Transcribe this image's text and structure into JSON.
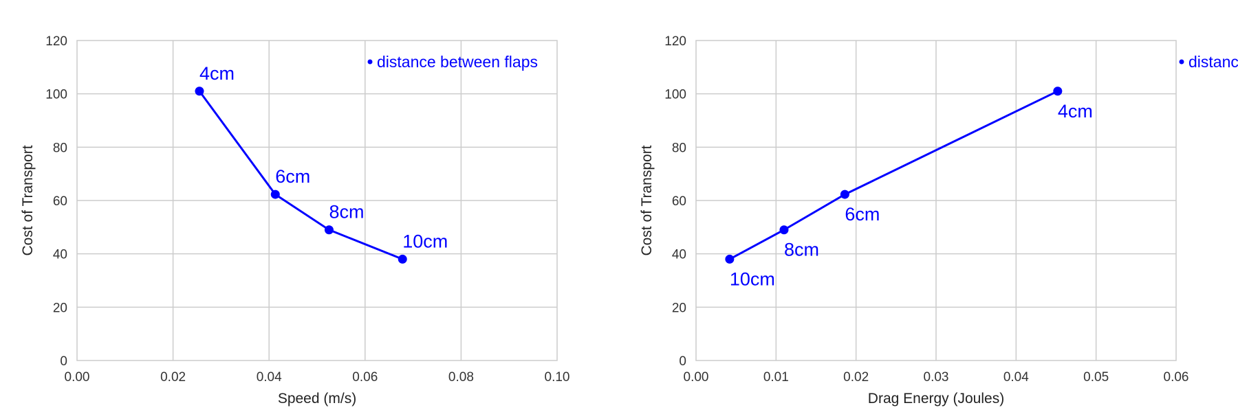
{
  "chart_data": [
    {
      "type": "line",
      "xlabel": "Speed (m/s)",
      "ylabel": "Cost of Transport",
      "xlim": [
        0,
        0.1
      ],
      "ylim": [
        0,
        120
      ],
      "xticks": [
        "0.00",
        "0.02",
        "0.04",
        "0.06",
        "0.08",
        "0.10"
      ],
      "yticks": [
        "0",
        "20",
        "40",
        "60",
        "80",
        "100",
        "120"
      ],
      "grid": true,
      "legend": {
        "label": "distance between flaps",
        "placement": "top-right"
      },
      "series": [
        {
          "name": "distance between flaps",
          "color": "#0000ff",
          "points": [
            {
              "x": 0.0255,
              "y": 101,
              "label": "4cm"
            },
            {
              "x": 0.0413,
              "y": 62.3,
              "label": "6cm"
            },
            {
              "x": 0.0525,
              "y": 49,
              "label": "8cm"
            },
            {
              "x": 0.0678,
              "y": 38,
              "label": "10cm"
            }
          ]
        }
      ]
    },
    {
      "type": "line",
      "xlabel": "Drag Energy (Joules)",
      "ylabel": "Cost of Transport",
      "xlim": [
        0,
        0.06
      ],
      "ylim": [
        0,
        120
      ],
      "xticks": [
        "0.00",
        "0.01",
        "0.02",
        "0.03",
        "0.04",
        "0.05",
        "0.06"
      ],
      "yticks": [
        "0",
        "20",
        "40",
        "60",
        "80",
        "100",
        "120"
      ],
      "grid": true,
      "legend": {
        "label": "distance between flaps",
        "placement": "top-right (clipped)"
      },
      "series": [
        {
          "name": "distance between flaps",
          "color": "#0000ff",
          "points": [
            {
              "x": 0.0452,
              "y": 101,
              "label": "4cm"
            },
            {
              "x": 0.0186,
              "y": 62.3,
              "label": "6cm"
            },
            {
              "x": 0.011,
              "y": 49,
              "label": "8cm"
            },
            {
              "x": 0.0042,
              "y": 38,
              "label": "10cm"
            }
          ]
        }
      ]
    }
  ]
}
